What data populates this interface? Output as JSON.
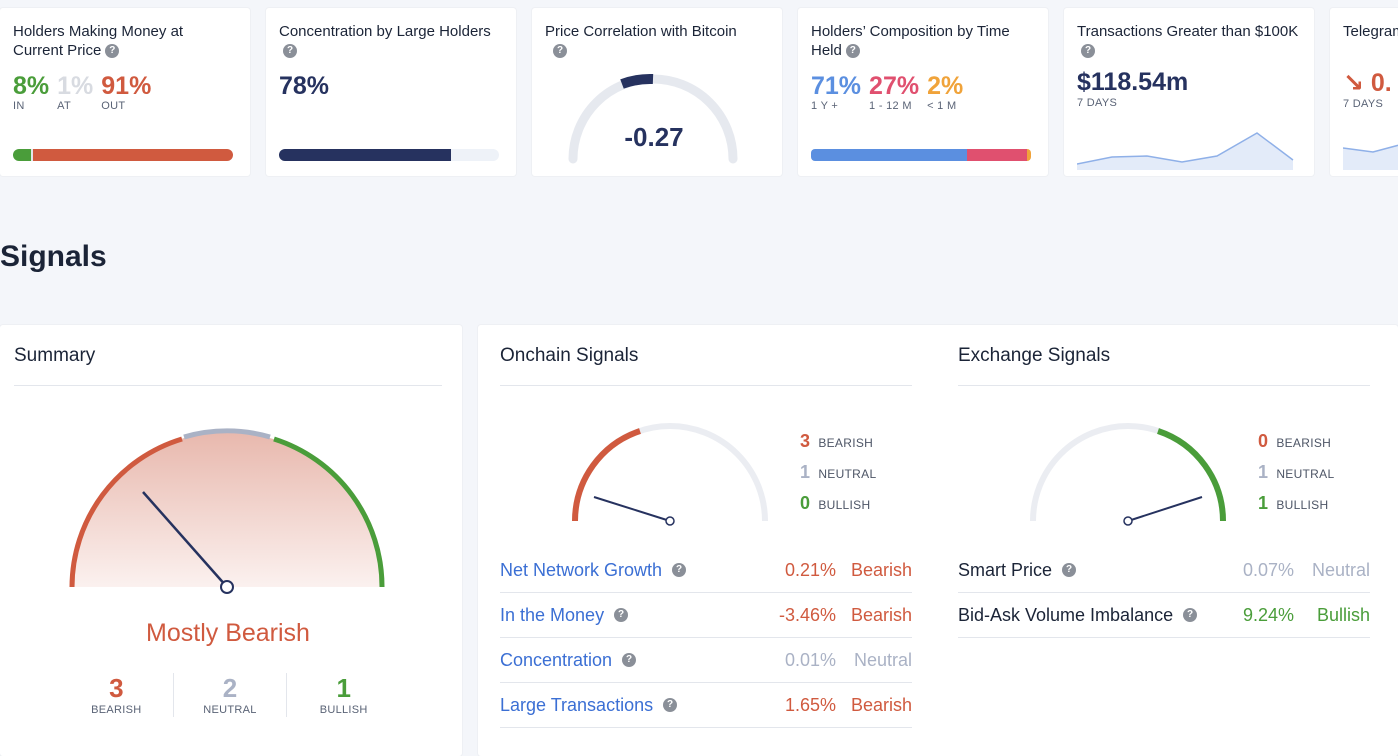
{
  "metrics": {
    "holders_money": {
      "title": "Holders Making Money at Current Price",
      "in_val": "8%",
      "in_label": "IN",
      "at_val": "1%",
      "at_label": "AT",
      "out_val": "91%",
      "out_label": "OUT",
      "in_frac": 0.08,
      "at_frac": 0.01,
      "out_frac": 0.91
    },
    "concentration": {
      "title": "Concentration by Large Holders",
      "value": "78%",
      "fill_frac": 0.78
    },
    "correlation": {
      "title": "Price Correlation with Bitcoin",
      "value": "-0.27"
    },
    "composition": {
      "title": "Holders’ Composition by Time Held",
      "a_val": "71%",
      "a_label": "1 Y +",
      "b_val": "27%",
      "b_label": "1 - 12 M",
      "c_val": "2%",
      "c_label": "< 1 M",
      "a_frac": 0.71,
      "b_frac": 0.27,
      "c_frac": 0.02
    },
    "transactions": {
      "title": "Transactions Greater than $100K",
      "value": "$118.54m",
      "period": "7 DAYS"
    },
    "telegram": {
      "title": "Telegram",
      "value": "0.",
      "period": "7 DAYS"
    }
  },
  "signals": {
    "title": "Signals",
    "summary": {
      "title": "Summary",
      "verdict": "Mostly Bearish",
      "bearish_count": "3",
      "bearish_label": "BEARISH",
      "neutral_count": "2",
      "neutral_label": "NEUTRAL",
      "bullish_count": "1",
      "bullish_label": "BULLISH"
    },
    "onchain": {
      "title": "Onchain Signals",
      "bearish_count": "3",
      "bearish_label": "BEARISH",
      "neutral_count": "1",
      "neutral_label": "NEUTRAL",
      "bullish_count": "0",
      "bullish_label": "BULLISH",
      "rows": [
        {
          "name": "Net Network Growth",
          "value": "0.21%",
          "verdict": "Bearish"
        },
        {
          "name": "In the Money",
          "value": "-3.46%",
          "verdict": "Bearish"
        },
        {
          "name": "Concentration",
          "value": "0.01%",
          "verdict": "Neutral"
        },
        {
          "name": "Large Transactions",
          "value": "1.65%",
          "verdict": "Bearish"
        }
      ]
    },
    "exchange": {
      "title": "Exchange Signals",
      "bearish_count": "0",
      "bearish_label": "BEARISH",
      "neutral_count": "1",
      "neutral_label": "NEUTRAL",
      "bullish_count": "1",
      "bullish_label": "BULLISH",
      "rows": [
        {
          "name": "Smart Price",
          "value": "0.07%",
          "verdict": "Neutral"
        },
        {
          "name": "Bid-Ask Volume Imbalance",
          "value": "9.24%",
          "verdict": "Bullish"
        }
      ]
    }
  },
  "colors": {
    "bearish": "#d05a3f",
    "neutral": "#aab2c5",
    "bullish": "#4a9d3a",
    "navy": "#26325f",
    "link": "#3b6fd4",
    "long_term": "#5b8fe0",
    "mid_term": "#e0506f",
    "short_term": "#f0a33a"
  }
}
